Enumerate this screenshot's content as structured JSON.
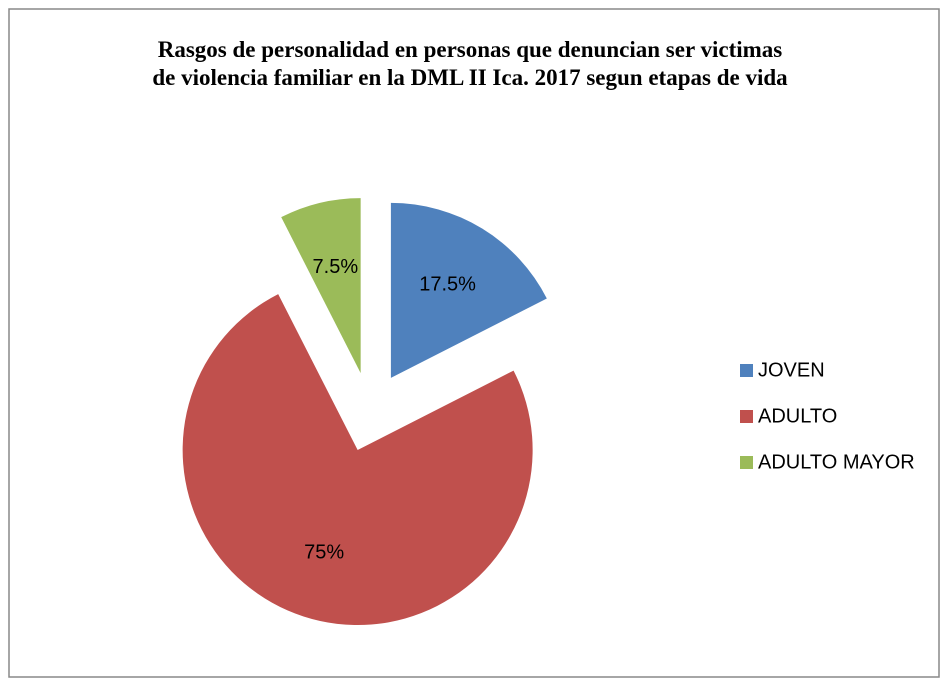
{
  "chart_data": {
    "type": "pie",
    "title": "Rasgos de personalidad en personas que denuncian ser victimas de violencia familiar en la DML II Ica. 2017 segun etapas de vida",
    "categories": [
      "JOVEN",
      "ADULTO",
      "ADULTO MAYOR"
    ],
    "values": [
      17.5,
      75,
      7.5
    ],
    "value_labels": [
      "17.5%",
      "75%",
      "7.5%"
    ],
    "colors": [
      "#4f81bd",
      "#c0504d",
      "#9bbb59"
    ],
    "legend": "right"
  }
}
